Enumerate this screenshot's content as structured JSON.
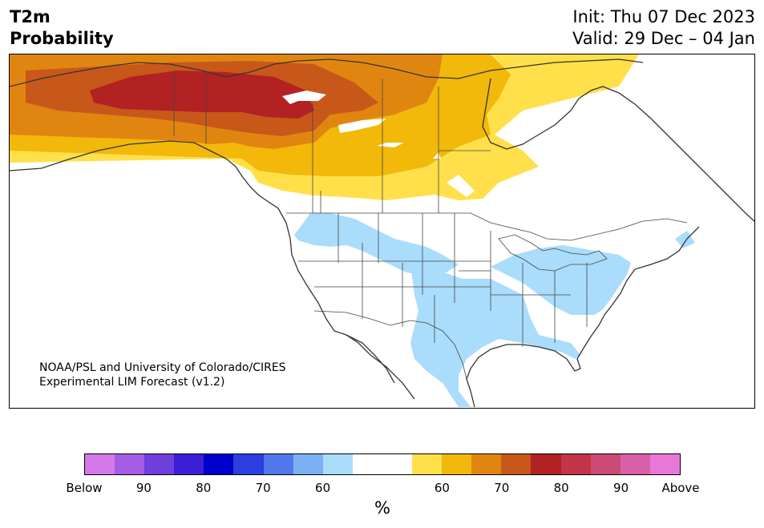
{
  "title": {
    "left_line1": "T2m",
    "left_line2": "Probability",
    "init": "Init: Thu 07 Dec 2023",
    "valid": "Valid: 29 Dec – 04 Jan"
  },
  "credit": {
    "line1": "NOAA/PSL and University of Colorado/CIRES",
    "line2": "Experimental LIM Forecast (v1.2)"
  },
  "colorbar": {
    "colors": [
      "#d478ea",
      "#a55de6",
      "#6f3fdc",
      "#3a1fd6",
      "#0000cc",
      "#2a3fdd",
      "#5078ea",
      "#7ab0f4",
      "#aadcfb",
      "#ffffff",
      "#ffffff",
      "#ffe04a",
      "#f2b80a",
      "#e08610",
      "#c8581a",
      "#b22222",
      "#c23548",
      "#cc4a78",
      "#d860a8",
      "#e878d8"
    ],
    "ticks": [
      "Below",
      "90",
      "80",
      "70",
      "60",
      "60",
      "70",
      "80",
      "90",
      "Above"
    ],
    "unit": "%"
  },
  "legend_colors": {
    "above_60": "#ffe04a",
    "above_70": "#f2b80a",
    "above_80": "#e08610",
    "above_90": "#c8581a",
    "above_95": "#b22222",
    "below_60": "#aadcfb"
  }
}
